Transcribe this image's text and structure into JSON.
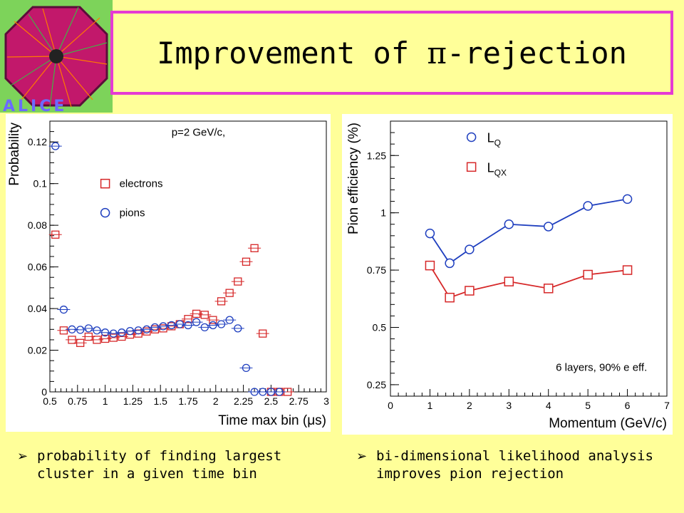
{
  "header": {
    "title_pre": "Improvement of ",
    "title_pi": "π",
    "title_post": "-rejection",
    "logo_text": "ALICE",
    "border_color": "#e53bd3"
  },
  "colors": {
    "electrons": "#d62728",
    "pions": "#1f3fbf",
    "line_blue": "#1f3fbf",
    "line_red": "#d62728"
  },
  "chart_data": [
    {
      "type": "scatter",
      "title": "",
      "annotation": "p=2 GeV/c,",
      "xlabel": "Time max bin (μs)",
      "ylabel": "Probability",
      "xlim": [
        0.5,
        3
      ],
      "ylim": [
        0,
        0.13
      ],
      "xticks": [
        "0.5",
        "0.75",
        "1",
        "1.25",
        "1.5",
        "1.75",
        "2",
        "2.25",
        "2.5",
        "2.75",
        "3"
      ],
      "yticks": [
        "0",
        "0.02",
        "0.04",
        "0.06",
        "0.08",
        "0.1",
        "0.12"
      ],
      "legend": [
        "electrons",
        "pions"
      ],
      "series": [
        {
          "name": "electrons",
          "marker": "square",
          "x": [
            0.55,
            0.625,
            0.7,
            0.775,
            0.85,
            0.925,
            1.0,
            1.075,
            1.15,
            1.225,
            1.3,
            1.375,
            1.45,
            1.525,
            1.6,
            1.675,
            1.75,
            1.825,
            1.9,
            1.975,
            2.05,
            2.125,
            2.2,
            2.275,
            2.35,
            2.425,
            2.5,
            2.575,
            2.65
          ],
          "values": [
            0.0755,
            0.0295,
            0.025,
            0.0235,
            0.0265,
            0.025,
            0.0255,
            0.026,
            0.0265,
            0.0275,
            0.028,
            0.029,
            0.03,
            0.0305,
            0.0315,
            0.0325,
            0.035,
            0.0375,
            0.037,
            0.0345,
            0.0435,
            0.0475,
            0.053,
            0.0625,
            0.069,
            0.028,
            0.0,
            0.0,
            0.0
          ]
        },
        {
          "name": "pions",
          "marker": "circle",
          "x": [
            0.55,
            0.625,
            0.7,
            0.775,
            0.85,
            0.925,
            1.0,
            1.075,
            1.15,
            1.225,
            1.3,
            1.375,
            1.45,
            1.525,
            1.6,
            1.675,
            1.75,
            1.825,
            1.9,
            1.975,
            2.05,
            2.125,
            2.2,
            2.275,
            2.35,
            2.425,
            2.5,
            2.575
          ],
          "values": [
            0.118,
            0.0395,
            0.03,
            0.0298,
            0.0305,
            0.0295,
            0.0285,
            0.028,
            0.0285,
            0.0292,
            0.0295,
            0.03,
            0.031,
            0.0315,
            0.032,
            0.0325,
            0.032,
            0.0335,
            0.031,
            0.032,
            0.0325,
            0.0345,
            0.0305,
            0.0115,
            0.0,
            0.0,
            0.0,
            0.0
          ]
        }
      ]
    },
    {
      "type": "line",
      "title": "",
      "annotation": "6 layers, 90% e eff.",
      "xlabel": "Momentum (GeV/c)",
      "ylabel": "Pion efficiency (%)",
      "xlim": [
        0,
        7
      ],
      "ylim": [
        0.2,
        1.4
      ],
      "xticks": [
        "0",
        "1",
        "2",
        "3",
        "4",
        "5",
        "6",
        "7"
      ],
      "yticks": [
        "0.25",
        "0.5",
        "0.75",
        "1",
        "1.25"
      ],
      "legend": [
        {
          "main": "L",
          "sub": "Q"
        },
        {
          "main": "L",
          "sub": "QX"
        }
      ],
      "series": [
        {
          "name": "LQ",
          "marker": "circle",
          "x": [
            1,
            1.5,
            2,
            3,
            4,
            5,
            6
          ],
          "values": [
            0.91,
            0.78,
            0.84,
            0.95,
            0.94,
            1.03,
            1.06
          ]
        },
        {
          "name": "LQX",
          "marker": "square",
          "x": [
            1,
            1.5,
            2,
            3,
            4,
            5,
            6
          ],
          "values": [
            0.77,
            0.63,
            0.66,
            0.7,
            0.67,
            0.73,
            0.75
          ]
        }
      ]
    }
  ],
  "bullets": {
    "arrow": "➢",
    "left": "probability of finding largest cluster in a given time bin",
    "right": "bi-dimensional likelihood analysis improves pion rejection"
  }
}
